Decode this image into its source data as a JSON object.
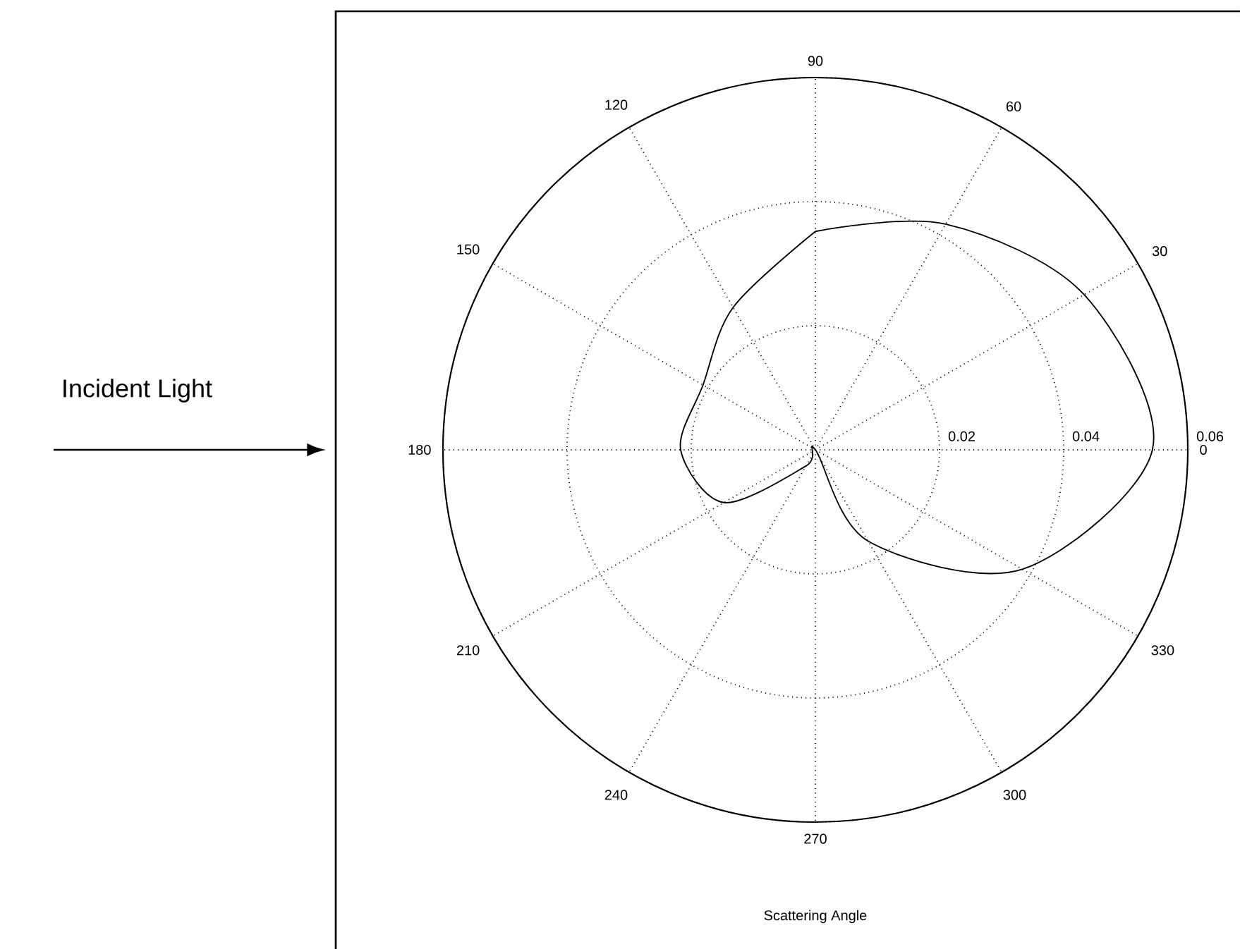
{
  "chart_data": {
    "type": "radar",
    "xlabel": "Scattering Angle",
    "annotations": [
      "Incident Light"
    ],
    "categories": [
      "90",
      "60",
      "30",
      "0",
      "330",
      "300",
      "270",
      "240",
      "210",
      "180",
      "150",
      "120"
    ],
    "ylim": [
      0,
      0.06
    ],
    "yticks": [
      0.02,
      0.04,
      0.06
    ],
    "grid": true,
    "line_style": "solid",
    "series": [
      {
        "color": "#000000",
        "values": [
          0.0352,
          0.042,
          0.05,
          0.0543,
          0.0385,
          0.017,
          0,
          0.003,
          0.017,
          0.0217,
          0.0209,
          0.0265
        ]
      }
    ]
  }
}
